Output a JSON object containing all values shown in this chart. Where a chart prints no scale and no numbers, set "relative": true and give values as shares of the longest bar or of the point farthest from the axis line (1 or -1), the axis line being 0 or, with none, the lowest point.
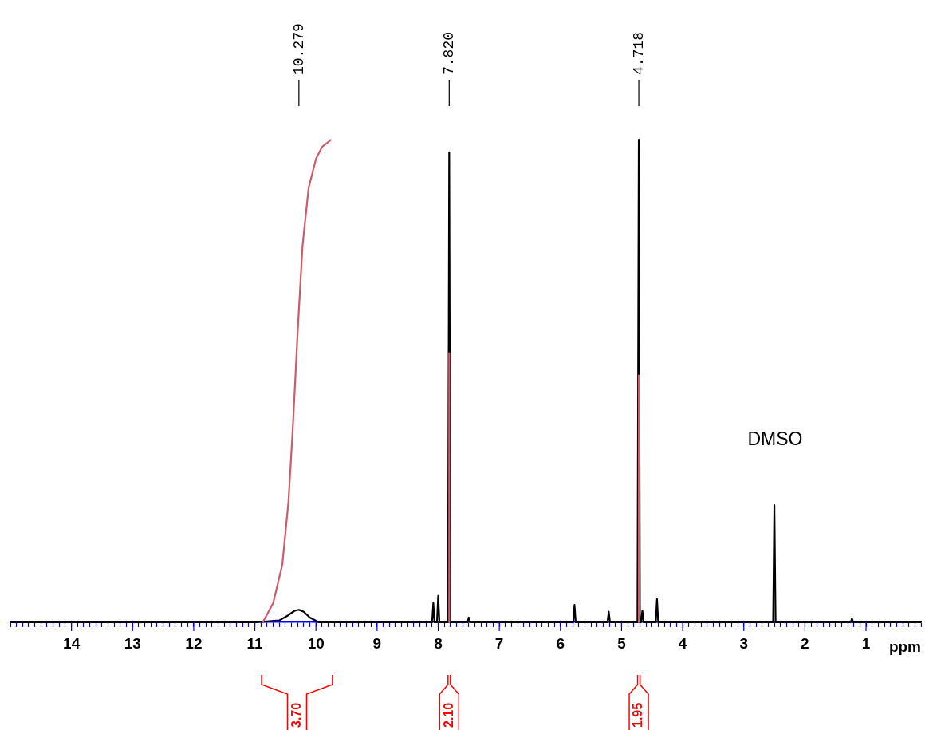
{
  "chart_data": {
    "type": "line",
    "xlabel": "ppm",
    "relative": true,
    "legend": false,
    "grid": false,
    "xlim": [
      15.0,
      0.1
    ],
    "xticks": [
      {
        "value": 15,
        "label": null
      },
      {
        "value": 14.9,
        "label": null
      },
      {
        "value": 14.8,
        "label": null
      },
      {
        "value": 14.7,
        "label": null
      },
      {
        "value": 14.6,
        "label": null
      },
      {
        "value": 14.5,
        "label": null
      },
      {
        "value": 14.4,
        "label": null
      },
      {
        "value": 14.3,
        "label": null
      },
      {
        "value": 14.2,
        "label": null
      },
      {
        "value": 14.1,
        "label": null
      },
      14,
      {
        "value": 13.9,
        "label": null
      },
      {
        "value": 13.8,
        "label": null
      },
      {
        "value": 13.7,
        "label": null
      },
      {
        "value": 13.6,
        "label": null
      },
      {
        "value": 13.5,
        "label": null
      },
      {
        "value": 13.4,
        "label": null
      },
      {
        "value": 13.3,
        "label": null
      },
      {
        "value": 13.2,
        "label": null
      },
      {
        "value": 13.1,
        "label": null
      },
      13,
      {
        "value": 12.9,
        "label": null
      },
      {
        "value": 12.8,
        "label": null
      },
      {
        "value": 12.7,
        "label": null
      },
      {
        "value": 12.6,
        "label": null
      },
      {
        "value": 12.5,
        "label": null
      },
      {
        "value": 12.4,
        "label": null
      },
      {
        "value": 12.3,
        "label": null
      },
      {
        "value": 12.2,
        "label": null
      },
      {
        "value": 12.1,
        "label": null
      },
      12,
      {
        "value": 11.9,
        "label": null
      },
      {
        "value": 11.8,
        "label": null
      },
      {
        "value": 11.7,
        "label": null
      },
      {
        "value": 11.6,
        "label": null
      },
      {
        "value": 11.5,
        "label": null
      },
      {
        "value": 11.4,
        "label": null
      },
      {
        "value": 11.3,
        "label": null
      },
      {
        "value": 11.2,
        "label": null
      },
      {
        "value": 11.1,
        "label": null
      },
      11,
      {
        "value": 10.9,
        "label": null
      },
      {
        "value": 10.8,
        "label": null
      },
      {
        "value": 10.7,
        "label": null
      },
      {
        "value": 10.6,
        "label": null
      },
      {
        "value": 10.5,
        "label": null
      },
      {
        "value": 10.4,
        "label": null
      },
      {
        "value": 10.3,
        "label": null
      },
      {
        "value": 10.2,
        "label": null
      },
      {
        "value": 10.1,
        "label": null
      },
      10,
      {
        "value": 9.9,
        "label": null
      },
      {
        "value": 9.8,
        "label": null
      },
      {
        "value": 9.7,
        "label": null
      },
      {
        "value": 9.6,
        "label": null
      },
      {
        "value": 9.5,
        "label": null
      },
      {
        "value": 9.4,
        "label": null
      },
      {
        "value": 9.3,
        "label": null
      },
      {
        "value": 9.2,
        "label": null
      },
      {
        "value": 9.1,
        "label": null
      },
      9,
      {
        "value": 8.9,
        "label": null
      },
      {
        "value": 8.8,
        "label": null
      },
      {
        "value": 8.7,
        "label": null
      },
      {
        "value": 8.6,
        "label": null
      },
      {
        "value": 8.5,
        "label": null
      },
      {
        "value": 8.4,
        "label": null
      },
      {
        "value": 8.3,
        "label": null
      },
      {
        "value": 8.2,
        "label": null
      },
      {
        "value": 8.1,
        "label": null
      },
      8,
      {
        "value": 7.9,
        "label": null
      },
      {
        "value": 7.8,
        "label": null
      },
      {
        "value": 7.7,
        "label": null
      },
      {
        "value": 7.6,
        "label": null
      },
      {
        "value": 7.5,
        "label": null
      },
      {
        "value": 7.4,
        "label": null
      },
      {
        "value": 7.3,
        "label": null
      },
      {
        "value": 7.2,
        "label": null
      },
      {
        "value": 7.1,
        "label": null
      },
      7,
      {
        "value": 6.9,
        "label": null
      },
      {
        "value": 6.8,
        "label": null
      },
      {
        "value": 6.7,
        "label": null
      },
      {
        "value": 6.6,
        "label": null
      },
      {
        "value": 6.5,
        "label": null
      },
      {
        "value": 6.4,
        "label": null
      },
      {
        "value": 6.3,
        "label": null
      },
      {
        "value": 6.2,
        "label": null
      },
      {
        "value": 6.1,
        "label": null
      },
      6,
      {
        "value": 5.9,
        "label": null
      },
      {
        "value": 5.8,
        "label": null
      },
      {
        "value": 5.7,
        "label": null
      },
      {
        "value": 5.6,
        "label": null
      },
      {
        "value": 5.5,
        "label": null
      },
      {
        "value": 5.4,
        "label": null
      },
      {
        "value": 5.3,
        "label": null
      },
      {
        "value": 5.2,
        "label": null
      },
      {
        "value": 5.1,
        "label": null
      },
      5,
      {
        "value": 4.9,
        "label": null
      },
      {
        "value": 4.8,
        "label": null
      },
      {
        "value": 4.7,
        "label": null
      },
      {
        "value": 4.6,
        "label": null
      },
      {
        "value": 4.5,
        "label": null
      },
      {
        "value": 4.4,
        "label": null
      },
      {
        "value": 4.3,
        "label": null
      },
      {
        "value": 4.2,
        "label": null
      },
      {
        "value": 4.1,
        "label": null
      },
      4,
      {
        "value": 3.9,
        "label": null
      },
      {
        "value": 3.8,
        "label": null
      },
      {
        "value": 3.7,
        "label": null
      },
      {
        "value": 3.6,
        "label": null
      },
      {
        "value": 3.5,
        "label": null
      },
      {
        "value": 3.4,
        "label": null
      },
      {
        "value": 3.3,
        "label": null
      },
      {
        "value": 3.2,
        "label": null
      },
      {
        "value": 3.1,
        "label": null
      },
      3,
      {
        "value": 2.9,
        "label": null
      },
      {
        "value": 2.8,
        "label": null
      },
      {
        "value": 2.7,
        "label": null
      },
      {
        "value": 2.6,
        "label": null
      },
      {
        "value": 2.5,
        "label": null
      },
      {
        "value": 2.4,
        "label": null
      },
      {
        "value": 2.3,
        "label": null
      },
      {
        "value": 2.2,
        "label": null
      },
      {
        "value": 2.1,
        "label": null
      },
      2,
      {
        "value": 1.9,
        "label": null
      },
      {
        "value": 1.8,
        "label": null
      },
      {
        "value": 1.7,
        "label": null
      },
      {
        "value": 1.6,
        "label": null
      },
      {
        "value": 1.5,
        "label": null
      },
      {
        "value": 1.4,
        "label": null
      },
      {
        "value": 1.3,
        "label": null
      },
      {
        "value": 1.2,
        "label": null
      },
      {
        "value": 1.1,
        "label": null
      },
      1,
      {
        "value": 0.9,
        "label": null
      },
      {
        "value": 0.8,
        "label": null
      },
      {
        "value": 0.7,
        "label": null
      },
      {
        "value": 0.6,
        "label": null
      },
      {
        "value": 0.5,
        "label": null
      },
      {
        "value": 0.4,
        "label": null
      },
      {
        "value": 0.3,
        "label": null
      },
      {
        "value": 0.2,
        "label": null
      },
      {
        "value": 0.1,
        "label": null
      }
    ],
    "series": [
      {
        "color": "#000000",
        "x": [
          15,
          11.0,
          10.6,
          10.45,
          10.35,
          10.279,
          10.2,
          10.1,
          9.95,
          8.1,
          8.08,
          8.06,
          8.02,
          8.0,
          7.98,
          7.84,
          7.82,
          7.8,
          7.52,
          7.5,
          7.48,
          5.79,
          5.77,
          5.75,
          5.23,
          5.21,
          5.19,
          4.74,
          4.718,
          4.7,
          4.68,
          4.66,
          4.64,
          4.44,
          4.42,
          4.4,
          2.52,
          2.5,
          2.48,
          1.25,
          1.23,
          1.21,
          0.1
        ],
        "values": [
          0,
          0,
          0.004,
          0.015,
          0.024,
          0.026,
          0.022,
          0.01,
          0,
          0,
          0.04,
          0,
          0,
          0.055,
          0,
          0,
          0.974,
          0,
          0,
          0.01,
          0,
          0,
          0.036,
          0,
          0,
          0.022,
          0,
          0,
          1,
          0,
          0,
          0.024,
          0,
          0,
          0.048,
          0,
          0,
          0.243,
          0,
          0,
          0.008,
          0,
          0
        ]
      },
      {
        "color": "#d05a6a",
        "x": [
          10.87,
          10.7,
          10.55,
          10.45,
          10.38,
          10.3,
          10.22,
          10.12,
          10.0,
          9.9,
          9.75
        ],
        "values": [
          0,
          0.04,
          0.12,
          0.25,
          0.4,
          0.6,
          0.78,
          0.9,
          0.96,
          0.985,
          1.0
        ]
      },
      {
        "color": "#d05a6a",
        "x": [
          7.82,
          7.82
        ],
        "values": [
          0,
          0.559
        ]
      },
      {
        "color": "#d05a6a",
        "x": [
          4.718,
          4.718
        ],
        "values": [
          0,
          0.513
        ]
      }
    ],
    "annotations": [
      {
        "text": "10.279",
        "x": 10.279
      },
      {
        "text": "7.820",
        "x": 7.82
      },
      {
        "text": "4.718",
        "x": 4.718
      },
      "DMSO",
      "3.70",
      "2.10",
      "1.95"
    ]
  }
}
